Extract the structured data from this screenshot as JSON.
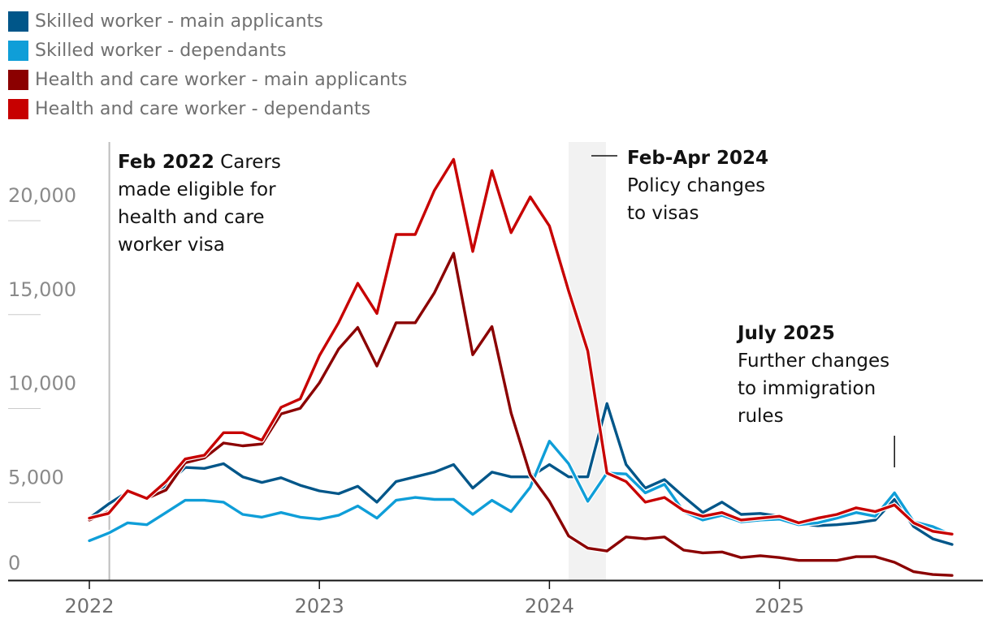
{
  "chart_data": {
    "type": "line",
    "x": [
      "2022-01",
      "2022-02",
      "2022-03",
      "2022-04",
      "2022-05",
      "2022-06",
      "2022-07",
      "2022-08",
      "2022-09",
      "2022-10",
      "2022-11",
      "2022-12",
      "2023-01",
      "2023-02",
      "2023-03",
      "2023-04",
      "2023-05",
      "2023-06",
      "2023-07",
      "2023-08",
      "2023-09",
      "2023-10",
      "2023-11",
      "2023-12",
      "2024-01",
      "2024-02",
      "2024-03",
      "2024-04",
      "2024-05",
      "2024-06",
      "2024-07",
      "2024-08",
      "2024-09",
      "2024-10",
      "2024-11",
      "2024-12",
      "2025-01",
      "2025-02",
      "2025-03",
      "2025-04",
      "2025-05",
      "2025-06",
      "2025-07",
      "2025-08",
      "2025-09",
      "2025-10"
    ],
    "series": [
      {
        "name": "Skilled worker - main applicants",
        "color": "#005689",
        "values": [
          3300,
          4050,
          4700,
          4350,
          5050,
          6000,
          5950,
          6200,
          5500,
          5200,
          5450,
          5050,
          4750,
          4600,
          5000,
          4150,
          5250,
          5500,
          5750,
          6150,
          4900,
          5750,
          5500,
          5500,
          6150,
          5500,
          5500,
          9400,
          6150,
          4900,
          5350,
          4450,
          3600,
          4150,
          3500,
          3550,
          3400,
          3000,
          2900,
          2950,
          3050,
          3200,
          4300,
          2850,
          2200,
          1900
        ]
      },
      {
        "name": "Skilled worker - dependants",
        "color": "#0f9ed8",
        "values": [
          2100,
          2500,
          3050,
          2950,
          3600,
          4250,
          4250,
          4150,
          3500,
          3350,
          3600,
          3350,
          3250,
          3450,
          3950,
          3300,
          4250,
          4400,
          4300,
          4300,
          3500,
          4250,
          3650,
          4950,
          7400,
          6200,
          4200,
          5700,
          5650,
          4650,
          5100,
          3650,
          3200,
          3450,
          3100,
          3200,
          3250,
          2950,
          3050,
          3300,
          3600,
          3400,
          4650,
          3100,
          2850,
          2400
        ]
      },
      {
        "name": "Health and care worker - main applicants",
        "color": "#8b0000",
        "values": [
          3200,
          3650,
          4700,
          4350,
          4800,
          6250,
          6500,
          7300,
          7150,
          7250,
          8850,
          9150,
          10500,
          12300,
          13450,
          11400,
          13700,
          13700,
          15300,
          17400,
          12000,
          13500,
          8900,
          5600,
          4200,
          2350,
          1700,
          1550,
          2300,
          2200,
          2300,
          1600,
          1450,
          1500,
          1200,
          1300,
          1200,
          1050,
          1050,
          1050,
          1250,
          1250,
          950,
          450,
          300,
          250
        ]
      },
      {
        "name": "Health and care worker - dependants",
        "color": "#c70000",
        "values": [
          3300,
          3550,
          4750,
          4350,
          5250,
          6450,
          6650,
          7850,
          7850,
          7450,
          9200,
          9650,
          11950,
          13700,
          15800,
          14200,
          18400,
          18400,
          20750,
          22400,
          17500,
          21800,
          18500,
          20400,
          18850,
          15400,
          12200,
          5700,
          5250,
          4150,
          4400,
          3700,
          3400,
          3600,
          3200,
          3300,
          3400,
          3050,
          3300,
          3500,
          3850,
          3650,
          4000,
          3050,
          2600,
          2450
        ]
      }
    ],
    "title": "",
    "xlabel": "",
    "ylabel": "",
    "ylim": [
      0,
      22600
    ],
    "yticks": [
      "0",
      "5,000",
      "10,000",
      "15,000",
      "20,000"
    ],
    "xticks": [
      {
        "label": "2022",
        "date": "2022-01"
      },
      {
        "label": "2023",
        "date": "2023-01"
      },
      {
        "label": "2024",
        "date": "2024-01"
      },
      {
        "label": "2025",
        "date": "2025-01"
      }
    ],
    "annotations": [
      {
        "bold": "Feb 2022",
        "text": [
          "Carers",
          "made eligible for",
          "health and care",
          "worker visa"
        ]
      },
      {
        "bold": "Feb-Apr 2024",
        "text": [
          "Policy changes",
          "to visas"
        ]
      },
      {
        "bold": "July 2025",
        "text": [
          "Further changes",
          "to immigration",
          "rules"
        ]
      }
    ]
  }
}
